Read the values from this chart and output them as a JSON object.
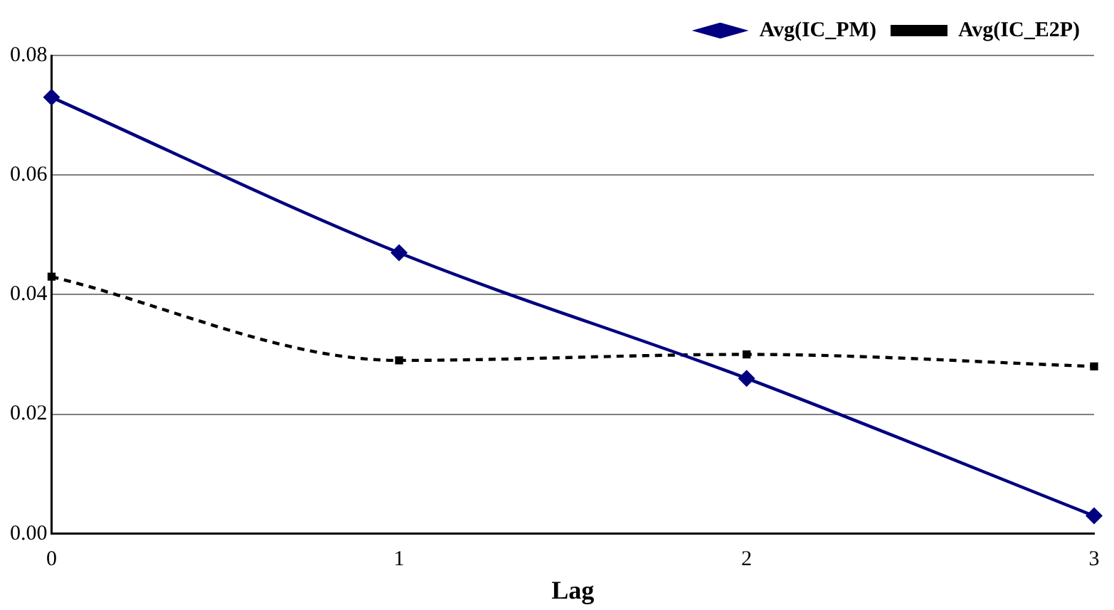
{
  "chart_data": {
    "type": "line",
    "xlabel": "Lag",
    "categories": [
      "0",
      "1",
      "2",
      "3"
    ],
    "series": [
      {
        "name": "Avg(IC_PM)",
        "color": "#000080",
        "values": [
          0.073,
          0.047,
          0.026,
          0.003
        ],
        "marker": "diamond",
        "line_style": "solid"
      },
      {
        "name": "Avg(IC_E2P)",
        "color": "#000000",
        "values": [
          0.043,
          0.029,
          0.03,
          0.028
        ],
        "marker": "square",
        "line_style": "dashed"
      }
    ],
    "ylim": [
      0,
      0.08
    ],
    "yticks": [
      {
        "value": 0,
        "label": "0.00"
      },
      {
        "value": 0.02,
        "label": "0.02"
      },
      {
        "value": 0.04,
        "label": "0.04"
      },
      {
        "value": 0.06,
        "label": "0.06"
      },
      {
        "value": 0.08,
        "label": "0.08"
      }
    ],
    "grid": "y",
    "legend": "top right"
  }
}
